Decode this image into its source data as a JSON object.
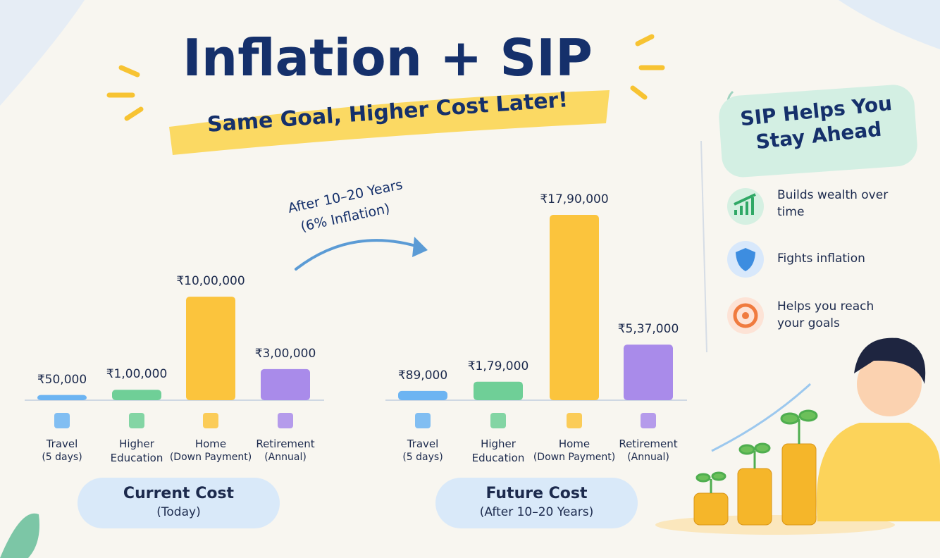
{
  "header": {
    "title": "Inflation + SIP",
    "subtitle": "Same Goal, Higher Cost Later!"
  },
  "transition": {
    "period": "After 10–20 Years",
    "rate": "(6% Inflation)"
  },
  "sidebar": {
    "title": "SIP Helps You Stay Ahead",
    "benefits": [
      "Builds wealth over time",
      "Fights inflation",
      "Helps you reach your goals"
    ]
  },
  "chart_data": [
    {
      "type": "bar",
      "title": "Current Cost",
      "subtitle": "(Today)",
      "categories": [
        "Travel",
        "Higher Education",
        "Home",
        "Retirement"
      ],
      "category_notes": [
        "(5 days)",
        null,
        "(Down Payment)",
        "(Annual)"
      ],
      "values": [
        50000,
        100000,
        1000000,
        300000
      ],
      "value_labels": [
        "₹50,000",
        "₹1,00,000",
        "₹10,00,000",
        "₹3,00,000"
      ],
      "colors": [
        "#6cb4f2",
        "#6fcf97",
        "#fbc43d",
        "#a98bea"
      ]
    },
    {
      "type": "bar",
      "title": "Future Cost",
      "subtitle": "(After 10–20 Years)",
      "categories": [
        "Travel",
        "Higher Education",
        "Home",
        "Retirement"
      ],
      "category_notes": [
        "(5 days)",
        null,
        "(Down Payment)",
        "(Annual)"
      ],
      "values": [
        89000,
        179000,
        1790000,
        537000
      ],
      "value_labels": [
        "₹89,000",
        "₹1,79,000",
        "₹17,90,000",
        "₹5,37,000"
      ],
      "colors": [
        "#6cb4f2",
        "#6fcf97",
        "#fbc43d",
        "#a98bea"
      ]
    }
  ]
}
